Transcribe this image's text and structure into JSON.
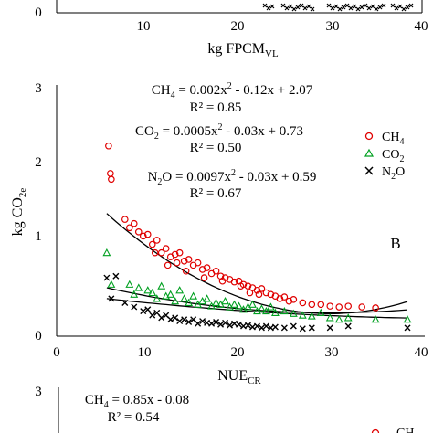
{
  "panel_top": {
    "x_ticks": [
      "10",
      "20",
      "30",
      "40"
    ],
    "y_ticks": [
      "0"
    ],
    "xlabel_main": "kg FPCM",
    "xlabel_sub": "VL"
  },
  "chart_data": {
    "type": "scatter",
    "panel_label": "B",
    "xlabel_main": "NUE",
    "xlabel_sub": "CR",
    "ylabel_main": "kg CO",
    "ylabel_sub": "2e",
    "xlim": [
      0,
      40
    ],
    "ylim": [
      0,
      3
    ],
    "x_ticks": [
      "0",
      "10",
      "20",
      "30",
      "40"
    ],
    "y_ticks": [
      "0",
      "1",
      "2",
      "3"
    ],
    "grid": false,
    "legend_position": "right",
    "series": [
      {
        "name": "CH4",
        "display": [
          "CH",
          "4",
          ""
        ],
        "marker": "circle",
        "color": "#e00000",
        "equation": [
          "CH",
          "4",
          " = 0.002x",
          "2",
          " - 0.12x + 2.07"
        ],
        "r2": "R² = 0.85",
        "fit": [
          0.002,
          -0.12,
          2.07
        ],
        "points": [
          [
            5.7,
            2.28
          ],
          [
            5.9,
            1.95
          ],
          [
            6.0,
            1.88
          ],
          [
            7.5,
            1.4
          ],
          [
            8.0,
            1.3
          ],
          [
            8.5,
            1.35
          ],
          [
            9.0,
            1.25
          ],
          [
            9.5,
            1.2
          ],
          [
            10.0,
            1.22
          ],
          [
            10.5,
            1.1
          ],
          [
            11.0,
            1.15
          ],
          [
            11.5,
            1.0
          ],
          [
            12.0,
            1.05
          ],
          [
            12.5,
            0.95
          ],
          [
            13.0,
            0.98
          ],
          [
            13.5,
            1.0
          ],
          [
            14.0,
            0.9
          ],
          [
            14.5,
            0.92
          ],
          [
            15.0,
            0.85
          ],
          [
            15.5,
            0.88
          ],
          [
            16.0,
            0.8
          ],
          [
            16.5,
            0.82
          ],
          [
            17.0,
            0.75
          ],
          [
            17.5,
            0.78
          ],
          [
            18.0,
            0.72
          ],
          [
            18.5,
            0.7
          ],
          [
            19.0,
            0.68
          ],
          [
            19.5,
            0.65
          ],
          [
            20.0,
            0.66
          ],
          [
            20.5,
            0.62
          ],
          [
            21.0,
            0.6
          ],
          [
            21.5,
            0.58
          ],
          [
            22.0,
            0.55
          ],
          [
            22.5,
            0.57
          ],
          [
            23.0,
            0.52
          ],
          [
            23.5,
            0.5
          ],
          [
            24.0,
            0.48
          ],
          [
            24.5,
            0.45
          ],
          [
            25.0,
            0.47
          ],
          [
            25.5,
            0.42
          ],
          [
            26.0,
            0.44
          ],
          [
            27.0,
            0.4
          ],
          [
            28.0,
            0.38
          ],
          [
            29.0,
            0.38
          ],
          [
            30.0,
            0.36
          ],
          [
            31.0,
            0.35
          ],
          [
            32.0,
            0.36
          ],
          [
            33.5,
            0.35
          ],
          [
            35.0,
            0.34
          ],
          [
            12.2,
            0.85
          ],
          [
            14.2,
            0.78
          ],
          [
            16.2,
            0.7
          ],
          [
            18.2,
            0.66
          ],
          [
            20.2,
            0.6
          ],
          [
            21.2,
            0.52
          ],
          [
            22.2,
            0.5
          ],
          [
            10.8,
            1.0
          ],
          [
            13.2,
            0.88
          ]
        ]
      },
      {
        "name": "CO2",
        "display": [
          "CO",
          "2",
          ""
        ],
        "marker": "triangle",
        "color": "#00a020",
        "equation": [
          "CO",
          "2",
          " = 0.0005x",
          "2",
          " - 0.03x + 0.73"
        ],
        "r2": "R² = 0.50",
        "fit": [
          0.0005,
          -0.03,
          0.73
        ],
        "points": [
          [
            5.5,
            1.0
          ],
          [
            6.0,
            0.62
          ],
          [
            8.0,
            0.62
          ],
          [
            8.5,
            0.5
          ],
          [
            9.0,
            0.58
          ],
          [
            10.0,
            0.55
          ],
          [
            10.5,
            0.52
          ],
          [
            11.0,
            0.45
          ],
          [
            11.5,
            0.6
          ],
          [
            12.0,
            0.48
          ],
          [
            12.5,
            0.5
          ],
          [
            13.0,
            0.42
          ],
          [
            13.5,
            0.55
          ],
          [
            14.0,
            0.45
          ],
          [
            14.5,
            0.4
          ],
          [
            15.0,
            0.48
          ],
          [
            15.5,
            0.38
          ],
          [
            16.0,
            0.42
          ],
          [
            16.5,
            0.45
          ],
          [
            17.0,
            0.36
          ],
          [
            17.5,
            0.4
          ],
          [
            18.0,
            0.38
          ],
          [
            18.5,
            0.42
          ],
          [
            19.0,
            0.35
          ],
          [
            19.5,
            0.38
          ],
          [
            20.0,
            0.36
          ],
          [
            20.5,
            0.32
          ],
          [
            21.0,
            0.35
          ],
          [
            21.5,
            0.38
          ],
          [
            22.0,
            0.3
          ],
          [
            22.5,
            0.33
          ],
          [
            23.0,
            0.3
          ],
          [
            23.5,
            0.35
          ],
          [
            24.0,
            0.28
          ],
          [
            25.0,
            0.3
          ],
          [
            26.0,
            0.27
          ],
          [
            27.0,
            0.25
          ],
          [
            28.0,
            0.24
          ],
          [
            29.0,
            0.28
          ],
          [
            30.0,
            0.22
          ],
          [
            31.0,
            0.2
          ],
          [
            32.0,
            0.22
          ],
          [
            35.0,
            0.2
          ],
          [
            38.5,
            0.2
          ]
        ]
      },
      {
        "name": "N2O",
        "display": [
          "N",
          "2",
          "O"
        ],
        "marker": "x",
        "color": "#000000",
        "equation": [
          "N",
          "2",
          "O = 0.0097x",
          "2",
          " - 0.03x + 0.59"
        ],
        "r2": "R² = 0.67",
        "fit": [
          0.0097,
          -0.03,
          0.59
        ],
        "points": [
          [
            5.5,
            0.7
          ],
          [
            6.5,
            0.72
          ],
          [
            6.0,
            0.45
          ],
          [
            7.5,
            0.4
          ],
          [
            8.5,
            0.35
          ],
          [
            9.5,
            0.3
          ],
          [
            10.0,
            0.32
          ],
          [
            10.5,
            0.25
          ],
          [
            11.0,
            0.28
          ],
          [
            11.5,
            0.22
          ],
          [
            12.0,
            0.25
          ],
          [
            12.5,
            0.2
          ],
          [
            13.0,
            0.22
          ],
          [
            13.5,
            0.18
          ],
          [
            14.0,
            0.2
          ],
          [
            14.5,
            0.17
          ],
          [
            15.0,
            0.2
          ],
          [
            15.5,
            0.15
          ],
          [
            16.0,
            0.18
          ],
          [
            16.5,
            0.16
          ],
          [
            17.0,
            0.15
          ],
          [
            17.5,
            0.17
          ],
          [
            18.0,
            0.14
          ],
          [
            18.5,
            0.16
          ],
          [
            19.0,
            0.13
          ],
          [
            19.5,
            0.15
          ],
          [
            20.0,
            0.14
          ],
          [
            20.5,
            0.12
          ],
          [
            21.0,
            0.13
          ],
          [
            21.5,
            0.11
          ],
          [
            22.0,
            0.12
          ],
          [
            22.5,
            0.1
          ],
          [
            23.0,
            0.12
          ],
          [
            23.5,
            0.1
          ],
          [
            24.0,
            0.11
          ],
          [
            25.0,
            0.1
          ],
          [
            26.0,
            0.12
          ],
          [
            27.0,
            0.09
          ],
          [
            28.0,
            0.1
          ],
          [
            30.0,
            0.1
          ],
          [
            32.0,
            0.12
          ],
          [
            38.5,
            0.1
          ]
        ]
      }
    ]
  },
  "panel_bottom": {
    "y_tick_top": "3",
    "equation": [
      "CH",
      "4",
      " = 0.85x - 0.08"
    ],
    "r2": "R² = 0.54",
    "legend_partial": "CH"
  }
}
